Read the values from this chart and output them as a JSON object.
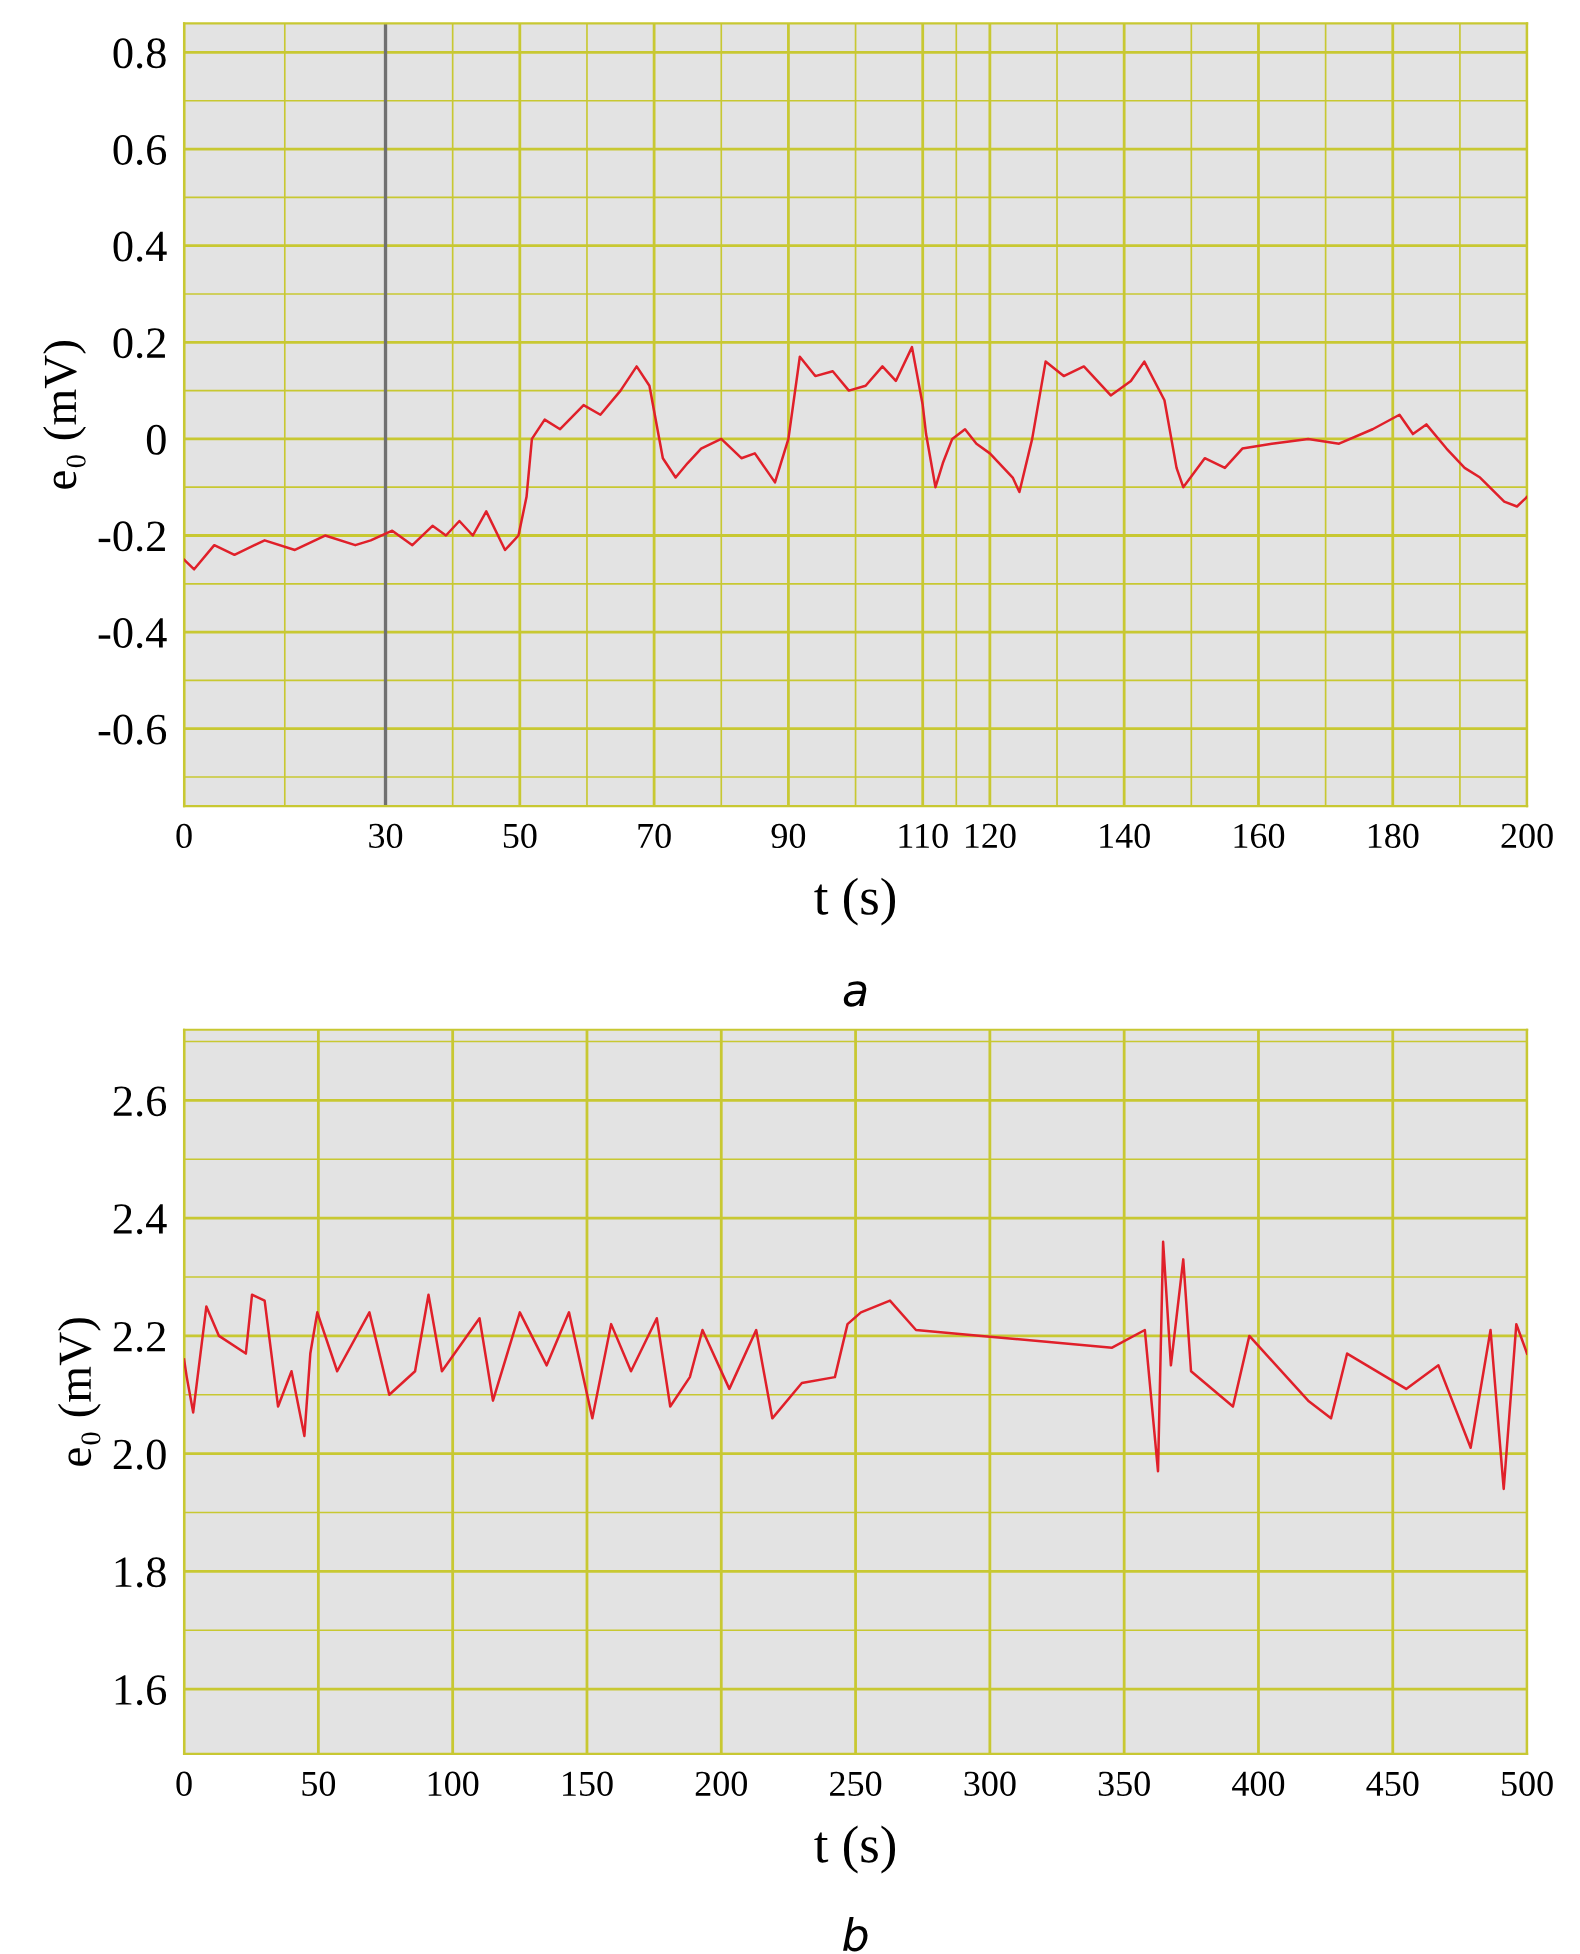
{
  "chart_data": [
    {
      "type": "line",
      "xlabel": "t (s)",
      "ylabel": "e₀ (mV)",
      "annotations": [
        "a"
      ],
      "xlim": [
        0,
        200
      ],
      "xticks": [
        0,
        {
          "value": 15,
          "label": null
        },
        30,
        {
          "value": 40,
          "label": null
        },
        50,
        {
          "value": 60,
          "label": null
        },
        70,
        {
          "value": 80,
          "label": null
        },
        90,
        {
          "value": 100,
          "label": null
        },
        110,
        {
          "value": 115,
          "label": null
        },
        120,
        {
          "value": 130,
          "label": null
        },
        140,
        {
          "value": 150,
          "label": null
        },
        160,
        {
          "value": 170,
          "label": null
        },
        180,
        {
          "value": 190,
          "label": null
        },
        200
      ],
      "ylim": [
        -0.76,
        0.86
      ],
      "yticks": [
        {
          "value": -0.7,
          "label": null
        },
        {
          "value": -0.6,
          "label": "-0.6"
        },
        {
          "value": -0.5,
          "label": null
        },
        {
          "value": -0.4,
          "label": "-0.4"
        },
        {
          "value": -0.3,
          "label": null
        },
        {
          "value": -0.2,
          "label": "-0.2"
        },
        {
          "value": -0.1,
          "label": null
        },
        0,
        {
          "value": 0.1,
          "label": null
        },
        0.2,
        {
          "value": 0.3,
          "label": null
        },
        0.4,
        {
          "value": 0.5,
          "label": null
        },
        0.6,
        {
          "value": 0.7,
          "label": null
        },
        0.8
      ],
      "grid": true,
      "legend": false,
      "ref_lines": [
        {
          "axis": "x",
          "value": 30,
          "color": "#707070"
        }
      ],
      "series": [
        {
          "color": "#e0202a",
          "x": [
            0,
            1.5,
            4.5,
            7.5,
            12,
            16.5,
            21,
            25.5,
            27.8,
            31,
            34,
            37,
            39,
            41,
            43,
            45,
            47.8,
            49.8,
            51,
            51.8,
            53.7,
            56,
            59.5,
            62,
            65,
            67.4,
            69.3,
            71.3,
            73.2,
            75,
            77,
            80,
            83,
            85,
            88,
            90,
            91.7,
            94,
            96.6,
            99,
            101.5,
            104,
            106,
            108.4,
            110,
            110.5,
            111.9,
            113,
            114.4,
            116.3,
            118,
            120,
            123.4,
            124.4,
            126.3,
            128.3,
            131,
            134,
            138,
            141,
            143,
            146,
            147.8,
            148.8,
            152,
            155,
            157.6,
            162,
            167.4,
            172,
            177,
            181,
            183,
            185,
            188,
            190.7,
            193,
            196.6,
            198.5,
            200
          ],
          "values": [
            -0.25,
            -0.27,
            -0.22,
            -0.24,
            -0.21,
            -0.23,
            -0.2,
            -0.22,
            -0.21,
            -0.19,
            -0.22,
            -0.18,
            -0.2,
            -0.17,
            -0.2,
            -0.15,
            -0.23,
            -0.2,
            -0.12,
            0.0,
            0.04,
            0.02,
            0.07,
            0.05,
            0.1,
            0.15,
            0.11,
            -0.04,
            -0.08,
            -0.05,
            -0.02,
            0.0,
            -0.04,
            -0.03,
            -0.09,
            0.0,
            0.17,
            0.13,
            0.14,
            0.1,
            0.11,
            0.15,
            0.12,
            0.19,
            0.07,
            0.01,
            -0.1,
            -0.05,
            0.0,
            0.02,
            -0.01,
            -0.03,
            -0.08,
            -0.11,
            0.0,
            0.16,
            0.13,
            0.15,
            0.09,
            0.12,
            0.16,
            0.08,
            -0.06,
            -0.1,
            -0.04,
            -0.06,
            -0.02,
            -0.01,
            0.0,
            -0.01,
            0.02,
            0.05,
            0.01,
            0.03,
            -0.02,
            -0.06,
            -0.08,
            -0.13,
            -0.14,
            -0.12
          ]
        }
      ]
    },
    {
      "type": "line",
      "xlabel": "t (s)",
      "ylabel": "e₀ (mV)",
      "annotations": [
        "b"
      ],
      "xlim": [
        0,
        500
      ],
      "xticks": [
        0,
        50,
        100,
        150,
        200,
        250,
        300,
        350,
        400,
        450,
        500
      ],
      "ylim": [
        1.49,
        2.72
      ],
      "yticks": [
        1.6,
        {
          "value": 1.7,
          "label": null
        },
        1.8,
        {
          "value": 1.9,
          "label": null
        },
        {
          "value": 2.0,
          "label": "2.0"
        },
        {
          "value": 2.1,
          "label": null
        },
        2.2,
        {
          "value": 2.3,
          "label": null
        },
        2.4,
        {
          "value": 2.5,
          "label": null
        },
        2.6,
        {
          "value": 2.7,
          "label": null
        }
      ],
      "grid": true,
      "legend": false,
      "series": [
        {
          "color": "#e0202a",
          "x": [
            0,
            1,
            3.4,
            8.3,
            13,
            23,
            25.3,
            30,
            35,
            40,
            44.8,
            47,
            49.6,
            57,
            69,
            76.4,
            86,
            91,
            96,
            110,
            115,
            125,
            135,
            143.3,
            152,
            159,
            166.4,
            176,
            181,
            188.3,
            193,
            203,
            213,
            219,
            230,
            242.3,
            247,
            252,
            262.8,
            272.5,
            296.9,
            321,
            345.5,
            357.7,
            362.6,
            364.5,
            367.4,
            372,
            374.9,
            390.5,
            396.6,
            418.5,
            427,
            433,
            455,
            467,
            479,
            486.4,
            491.3,
            496,
            500
          ],
          "values": [
            2.16,
            2.13,
            2.07,
            2.25,
            2.2,
            2.17,
            2.27,
            2.26,
            2.08,
            2.14,
            2.03,
            2.17,
            2.24,
            2.14,
            2.24,
            2.1,
            2.14,
            2.27,
            2.14,
            2.23,
            2.09,
            2.24,
            2.15,
            2.24,
            2.06,
            2.22,
            2.14,
            2.23,
            2.08,
            2.13,
            2.21,
            2.11,
            2.21,
            2.06,
            2.12,
            2.13,
            2.22,
            2.24,
            2.26,
            2.21,
            2.2,
            2.19,
            2.18,
            2.21,
            1.97,
            2.36,
            2.15,
            2.33,
            2.14,
            2.08,
            2.2,
            2.09,
            2.06,
            2.17,
            2.11,
            2.15,
            2.01,
            2.21,
            1.94,
            2.22,
            2.17
          ]
        }
      ]
    }
  ]
}
